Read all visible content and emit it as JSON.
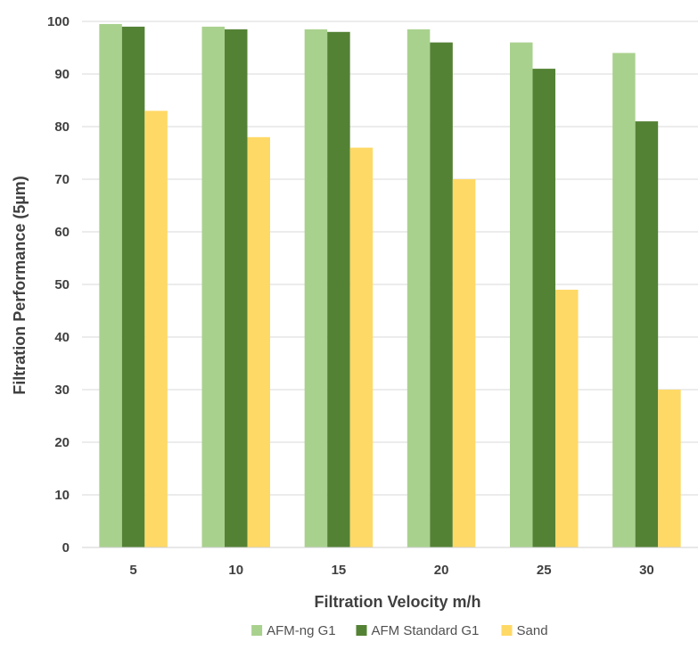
{
  "chart_data": {
    "type": "bar",
    "xlabel": "Filtration Velocity  m/h",
    "ylabel": "Filtration Performance (5µm)",
    "categories": [
      "5",
      "10",
      "15",
      "20",
      "25",
      "30"
    ],
    "ylim": [
      0,
      100
    ],
    "yticks": [
      0,
      10,
      20,
      30,
      40,
      50,
      60,
      70,
      80,
      90,
      100
    ],
    "grid": true,
    "legend_position": "bottom",
    "series": [
      {
        "name": "AFM-ng G1",
        "color": "#a9d18e",
        "values": [
          99.5,
          99,
          98.5,
          98.5,
          96,
          94
        ]
      },
      {
        "name": "AFM Standard G1",
        "color": "#548235",
        "values": [
          99,
          98.5,
          98,
          96,
          91,
          81
        ]
      },
      {
        "name": "Sand",
        "color": "#ffd966",
        "values": [
          83,
          78,
          76,
          70,
          49,
          30
        ]
      }
    ]
  }
}
